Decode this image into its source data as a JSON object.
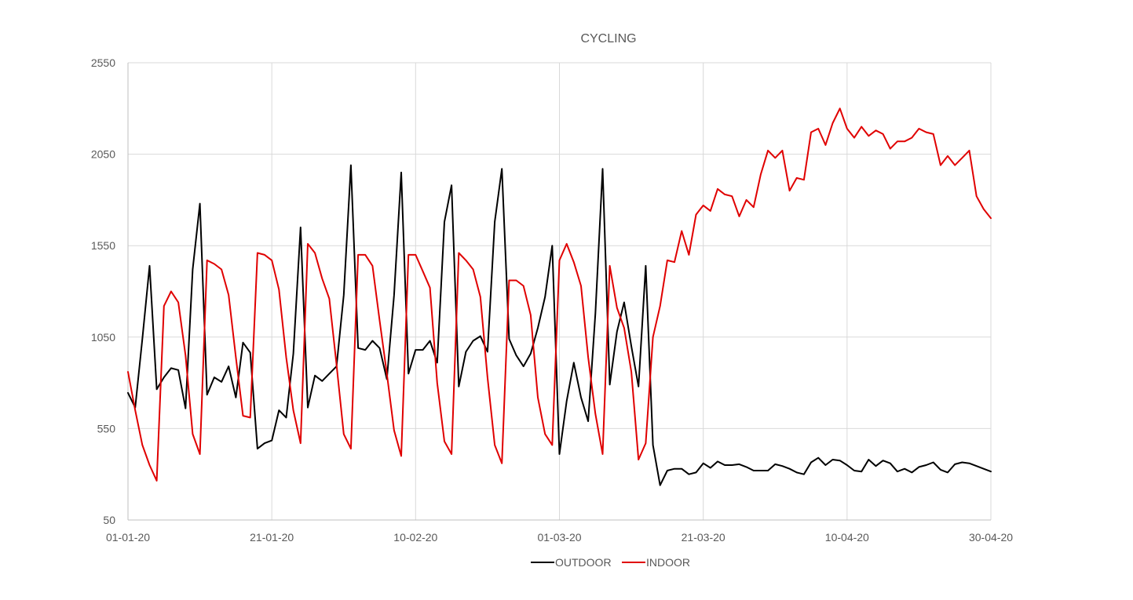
{
  "chart_data": {
    "type": "line",
    "title": "CYCLING",
    "xlabel": "",
    "ylabel": "",
    "x_start": "01-01-20",
    "x_end": "30-04-20",
    "xlim": [
      "01-01-20",
      "30-04-20"
    ],
    "ylim": [
      50,
      2550
    ],
    "y_ticks": [
      50,
      550,
      1050,
      1550,
      2050,
      2550
    ],
    "x_tick_labels": [
      "01-01-20",
      "21-01-20",
      "10-02-20",
      "01-03-20",
      "21-03-20",
      "10-04-20",
      "30-04-20"
    ],
    "grid": true,
    "legend_position": "bottom",
    "series": [
      {
        "name": "OUTDOOR",
        "color": "#000000",
        "values": [
          745,
          665,
          1040,
          1440,
          765,
          830,
          880,
          870,
          660,
          1420,
          1780,
          735,
          830,
          805,
          890,
          720,
          1020,
          965,
          440,
          470,
          485,
          650,
          610,
          960,
          1650,
          665,
          840,
          810,
          850,
          890,
          1280,
          1990,
          990,
          980,
          1030,
          990,
          820,
          1280,
          1950,
          850,
          980,
          980,
          1030,
          910,
          1680,
          1880,
          780,
          970,
          1030,
          1055,
          970,
          1680,
          1970,
          1040,
          950,
          890,
          960,
          1100,
          1270,
          1550,
          410,
          700,
          910,
          720,
          590,
          1180,
          1970,
          790,
          1080,
          1240,
          1000,
          780,
          1440,
          460,
          240,
          320,
          330,
          330,
          300,
          310,
          360,
          335,
          370,
          350,
          350,
          355,
          340,
          320,
          320,
          320,
          355,
          345,
          330,
          310,
          300,
          365,
          390,
          350,
          380,
          375,
          350,
          320,
          315,
          380,
          345,
          375,
          360,
          315,
          330,
          310,
          340,
          350,
          365,
          325,
          310,
          355,
          365,
          360,
          345,
          330,
          315
        ]
      },
      {
        "name": "INDOOR",
        "color": "#e00000",
        "values": [
          860,
          650,
          460,
          350,
          265,
          1220,
          1300,
          1240,
          950,
          520,
          410,
          1470,
          1450,
          1420,
          1280,
          940,
          620,
          610,
          1510,
          1500,
          1470,
          1310,
          940,
          650,
          470,
          1560,
          1510,
          1370,
          1260,
          900,
          520,
          440,
          1500,
          1500,
          1440,
          1140,
          850,
          540,
          400,
          1500,
          1500,
          1410,
          1320,
          800,
          480,
          410,
          1510,
          1470,
          1420,
          1270,
          830,
          460,
          360,
          1360,
          1360,
          1330,
          1170,
          720,
          520,
          460,
          1470,
          1560,
          1460,
          1330,
          940,
          630,
          410,
          1440,
          1210,
          1100,
          860,
          380,
          470,
          1050,
          1220,
          1470,
          1460,
          1630,
          1500,
          1720,
          1770,
          1740,
          1860,
          1830,
          1820,
          1710,
          1800,
          1760,
          1940,
          2070,
          2030,
          2070,
          1850,
          1920,
          1910,
          2170,
          2190,
          2100,
          2220,
          2300,
          2190,
          2140,
          2200,
          2150,
          2180,
          2160,
          2080,
          2120,
          2120,
          2140,
          2190,
          2170,
          2160,
          1990,
          2040,
          1990,
          2030,
          2070,
          1820,
          1750,
          1700
        ]
      }
    ]
  }
}
